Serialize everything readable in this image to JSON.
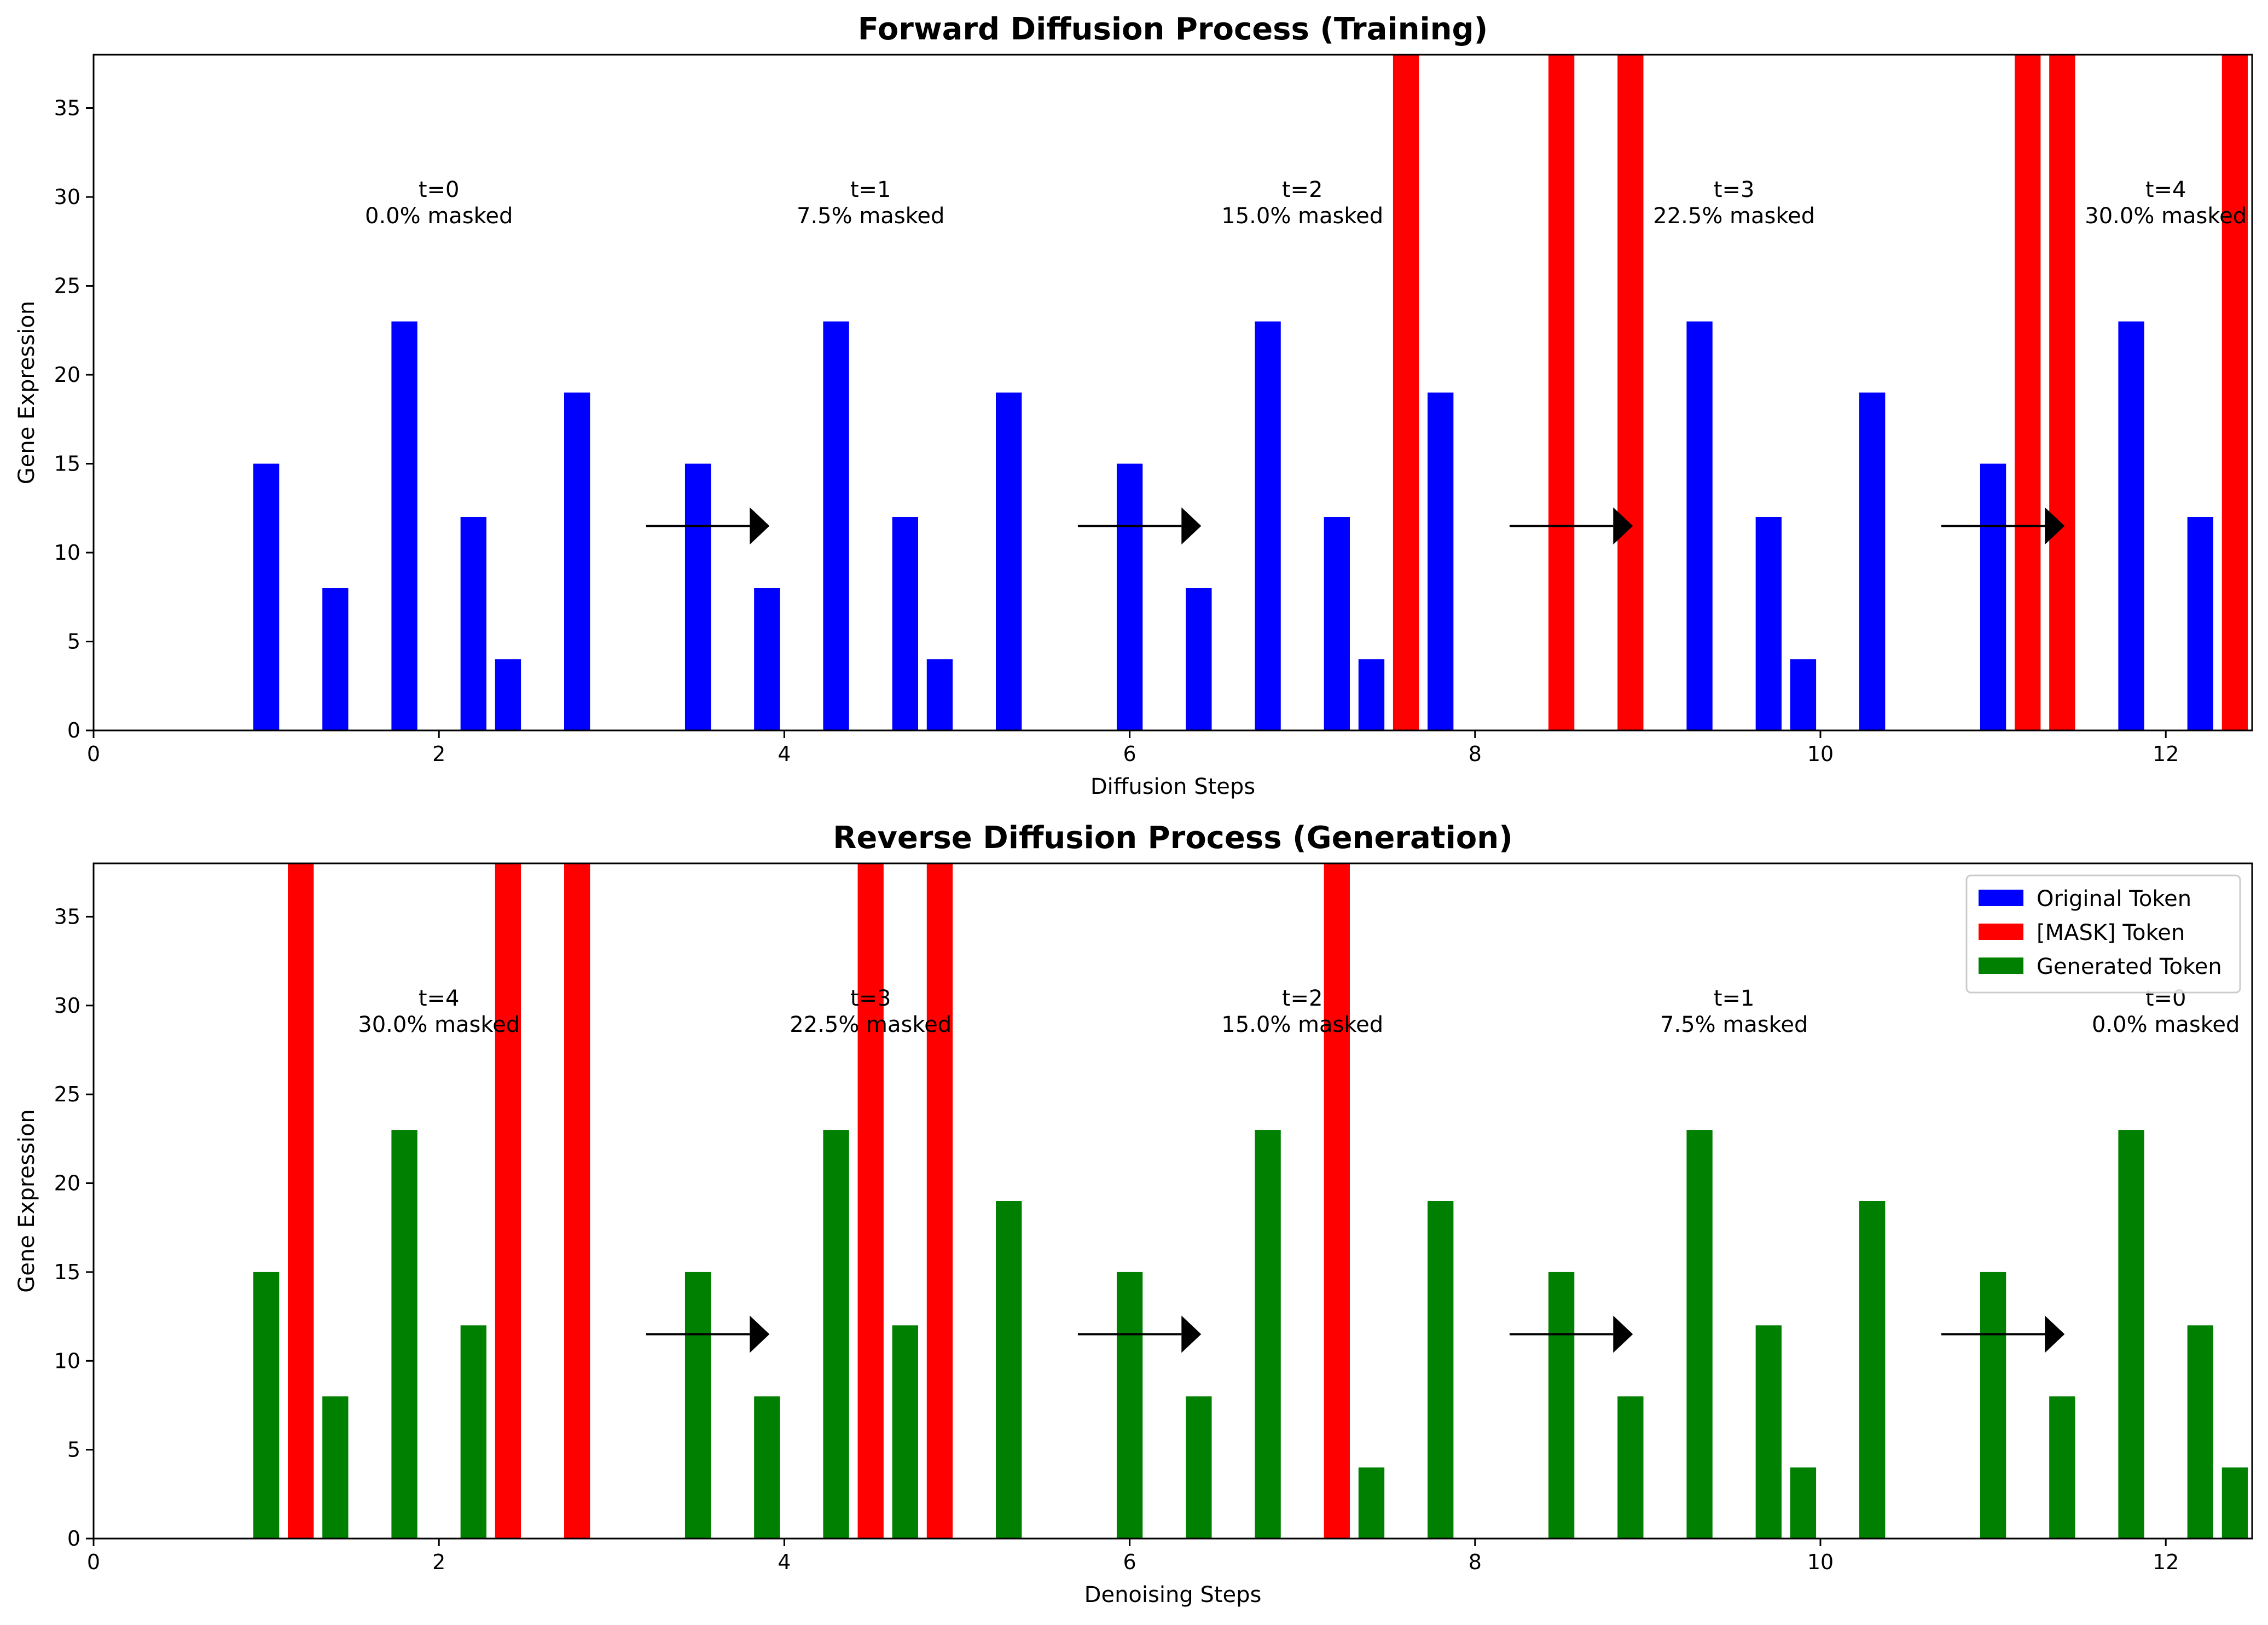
{
  "colors": {
    "original": "#0000ff",
    "mask": "#ff0000",
    "generated": "#008000",
    "axis": "#000000"
  },
  "legend": {
    "placement": "top-right",
    "items": [
      {
        "label": "Original Token",
        "color": "#0000ff"
      },
      {
        "label": "[MASK] Token",
        "color": "#ff0000"
      },
      {
        "label": "Generated Token",
        "color": "#008000"
      }
    ]
  },
  "chart_data": [
    {
      "type": "bar",
      "title": "Forward Diffusion Process (Training)",
      "xlabel": "Diffusion Steps",
      "ylabel": "Gene Expression",
      "xlim": [
        0,
        12.5
      ],
      "ylim": [
        0,
        38
      ],
      "xticks": [
        0,
        2,
        4,
        6,
        8,
        10,
        12
      ],
      "yticks": [
        0,
        5,
        10,
        15,
        20,
        25,
        30,
        35
      ],
      "bar_width": 0.15,
      "series": [
        {
          "name": "Original Token",
          "color": "#0000ff",
          "bars": [
            {
              "x": 1.0,
              "y": 15
            },
            {
              "x": 1.4,
              "y": 8
            },
            {
              "x": 1.8,
              "y": 23
            },
            {
              "x": 2.2,
              "y": 12
            },
            {
              "x": 2.4,
              "y": 4
            },
            {
              "x": 2.8,
              "y": 19
            },
            {
              "x": 3.5,
              "y": 15
            },
            {
              "x": 3.9,
              "y": 8
            },
            {
              "x": 4.3,
              "y": 23
            },
            {
              "x": 4.7,
              "y": 12
            },
            {
              "x": 4.9,
              "y": 4
            },
            {
              "x": 5.3,
              "y": 19
            },
            {
              "x": 6.0,
              "y": 15
            },
            {
              "x": 6.4,
              "y": 8
            },
            {
              "x": 6.8,
              "y": 23
            },
            {
              "x": 7.2,
              "y": 12
            },
            {
              "x": 7.4,
              "y": 4
            },
            {
              "x": 7.8,
              "y": 19
            },
            {
              "x": 9.3,
              "y": 23
            },
            {
              "x": 9.7,
              "y": 12
            },
            {
              "x": 9.9,
              "y": 4
            },
            {
              "x": 10.3,
              "y": 19
            },
            {
              "x": 11.0,
              "y": 15
            },
            {
              "x": 11.8,
              "y": 23
            },
            {
              "x": 12.2,
              "y": 12
            }
          ]
        },
        {
          "name": "[MASK] Token",
          "color": "#ff0000",
          "bars": [
            {
              "x": 7.6,
              "y": 38
            },
            {
              "x": 8.5,
              "y": 38
            },
            {
              "x": 8.9,
              "y": 38
            },
            {
              "x": 11.2,
              "y": 38
            },
            {
              "x": 11.4,
              "y": 38
            },
            {
              "x": 12.4,
              "y": 38
            }
          ]
        }
      ],
      "arrows": [
        {
          "x_start": 3.2,
          "x_end": 3.8,
          "y": 11.5
        },
        {
          "x_start": 5.7,
          "x_end": 6.3,
          "y": 11.5
        },
        {
          "x_start": 8.2,
          "x_end": 8.8,
          "y": 11.5
        },
        {
          "x_start": 10.7,
          "x_end": 11.3,
          "y": 11.5
        }
      ],
      "annotations": [
        {
          "x": 2.0,
          "y": 30,
          "lines": [
            "t=0",
            "0.0% masked"
          ]
        },
        {
          "x": 4.5,
          "y": 30,
          "lines": [
            "t=1",
            "7.5% masked"
          ]
        },
        {
          "x": 7.0,
          "y": 30,
          "lines": [
            "t=2",
            "15.0% masked"
          ]
        },
        {
          "x": 9.5,
          "y": 30,
          "lines": [
            "t=3",
            "22.5% masked"
          ]
        },
        {
          "x": 12.0,
          "y": 30,
          "lines": [
            "t=4",
            "30.0% masked"
          ]
        }
      ]
    },
    {
      "type": "bar",
      "title": "Reverse Diffusion Process (Generation)",
      "xlabel": "Denoising Steps",
      "ylabel": "Gene Expression",
      "xlim": [
        0,
        12.5
      ],
      "ylim": [
        0,
        38
      ],
      "xticks": [
        0,
        2,
        4,
        6,
        8,
        10,
        12
      ],
      "yticks": [
        0,
        5,
        10,
        15,
        20,
        25,
        30,
        35
      ],
      "bar_width": 0.15,
      "legend": true,
      "series": [
        {
          "name": "Generated Token",
          "color": "#008000",
          "bars": [
            {
              "x": 1.0,
              "y": 15
            },
            {
              "x": 1.4,
              "y": 8
            },
            {
              "x": 1.8,
              "y": 23
            },
            {
              "x": 2.2,
              "y": 12
            },
            {
              "x": 3.5,
              "y": 15
            },
            {
              "x": 3.9,
              "y": 8
            },
            {
              "x": 4.3,
              "y": 23
            },
            {
              "x": 4.7,
              "y": 12
            },
            {
              "x": 5.3,
              "y": 19
            },
            {
              "x": 6.0,
              "y": 15
            },
            {
              "x": 6.4,
              "y": 8
            },
            {
              "x": 6.8,
              "y": 23
            },
            {
              "x": 7.4,
              "y": 4
            },
            {
              "x": 7.8,
              "y": 19
            },
            {
              "x": 8.5,
              "y": 15
            },
            {
              "x": 8.9,
              "y": 8
            },
            {
              "x": 9.3,
              "y": 23
            },
            {
              "x": 9.7,
              "y": 12
            },
            {
              "x": 9.9,
              "y": 4
            },
            {
              "x": 10.3,
              "y": 19
            },
            {
              "x": 11.0,
              "y": 15
            },
            {
              "x": 11.4,
              "y": 8
            },
            {
              "x": 11.8,
              "y": 23
            },
            {
              "x": 12.2,
              "y": 12
            },
            {
              "x": 12.4,
              "y": 4
            }
          ]
        },
        {
          "name": "[MASK] Token",
          "color": "#ff0000",
          "bars": [
            {
              "x": 1.2,
              "y": 38
            },
            {
              "x": 2.4,
              "y": 38
            },
            {
              "x": 2.8,
              "y": 38
            },
            {
              "x": 4.5,
              "y": 38
            },
            {
              "x": 4.9,
              "y": 38
            },
            {
              "x": 7.2,
              "y": 38
            }
          ]
        }
      ],
      "arrows": [
        {
          "x_start": 3.2,
          "x_end": 3.8,
          "y": 11.5
        },
        {
          "x_start": 5.7,
          "x_end": 6.3,
          "y": 11.5
        },
        {
          "x_start": 8.2,
          "x_end": 8.8,
          "y": 11.5
        },
        {
          "x_start": 10.7,
          "x_end": 11.3,
          "y": 11.5
        }
      ],
      "annotations": [
        {
          "x": 2.0,
          "y": 30,
          "lines": [
            "t=4",
            "30.0% masked"
          ]
        },
        {
          "x": 4.5,
          "y": 30,
          "lines": [
            "t=3",
            "22.5% masked"
          ]
        },
        {
          "x": 7.0,
          "y": 30,
          "lines": [
            "t=2",
            "15.0% masked"
          ]
        },
        {
          "x": 9.5,
          "y": 30,
          "lines": [
            "t=1",
            "7.5% masked"
          ]
        },
        {
          "x": 12.0,
          "y": 30,
          "lines": [
            "t=0",
            "0.0% masked"
          ]
        }
      ]
    }
  ]
}
